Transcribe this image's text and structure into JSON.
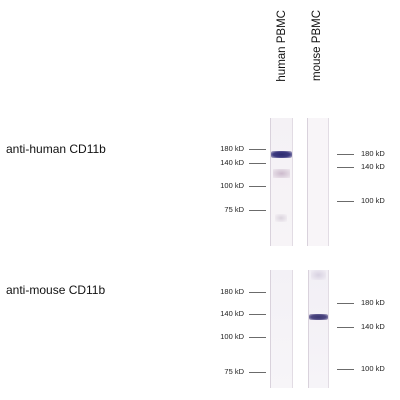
{
  "columns": [
    "human PBMC",
    "mouse PBMC"
  ],
  "panels": [
    {
      "label": "anti-human CD11b",
      "left_markers": [
        "180 kD",
        "140 kD",
        "100 kD",
        "75 kD"
      ],
      "right_markers": [
        "180 kD",
        "140 kD",
        "100 kD"
      ]
    },
    {
      "label": "anti-mouse CD11b",
      "left_markers": [
        "180 kD",
        "140 kD",
        "100 kD",
        "75 kD"
      ],
      "right_markers": [
        "180 kD",
        "140 kD",
        "100 kD"
      ]
    }
  ]
}
